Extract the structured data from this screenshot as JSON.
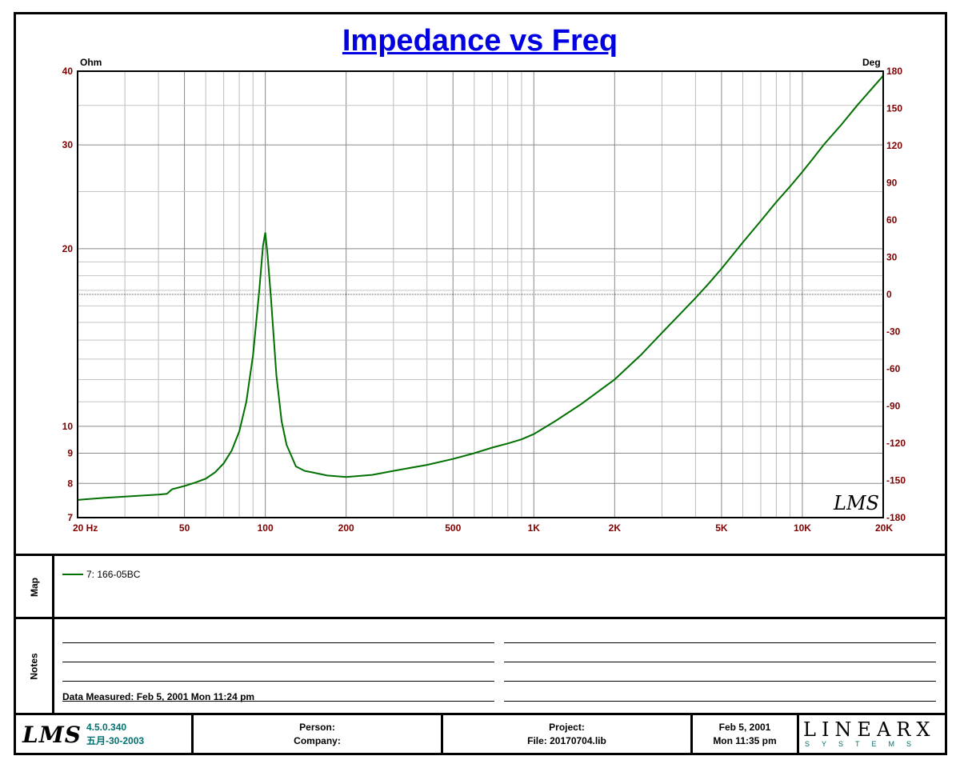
{
  "chart_data": {
    "type": "line",
    "title": "Impedance vs Freq",
    "y_left_unit": "Ohm",
    "y_right_unit": "Deg",
    "x_scale": "log",
    "y_left_scale": "log",
    "xlim": [
      20,
      20000
    ],
    "ylim_left": [
      7,
      40
    ],
    "ylim_right": [
      -180,
      180
    ],
    "x_ticks": [
      {
        "value": 20,
        "label": "20  Hz"
      },
      {
        "value": 50,
        "label": "50"
      },
      {
        "value": 100,
        "label": "100"
      },
      {
        "value": 200,
        "label": "200"
      },
      {
        "value": 500,
        "label": "500"
      },
      {
        "value": 1000,
        "label": "1K"
      },
      {
        "value": 2000,
        "label": "2K"
      },
      {
        "value": 5000,
        "label": "5K"
      },
      {
        "value": 10000,
        "label": "10K"
      },
      {
        "value": 20000,
        "label": "20K"
      }
    ],
    "y_left_ticks": [
      {
        "value": 40,
        "label": "40"
      },
      {
        "value": 30,
        "label": "30"
      },
      {
        "value": 20,
        "label": "20"
      },
      {
        "value": 10,
        "label": "10"
      },
      {
        "value": 9,
        "label": "9"
      },
      {
        "value": 8,
        "label": "8"
      },
      {
        "value": 7,
        "label": "7"
      }
    ],
    "y_right_ticks": [
      180,
      150,
      120,
      90,
      60,
      30,
      0,
      -30,
      -60,
      -90,
      -120,
      -150,
      -180
    ],
    "grid": true,
    "series": [
      {
        "name": "7: 166-05BC",
        "color": "#007000",
        "x": [
          20,
          25,
          30,
          35,
          40,
          43,
          45,
          50,
          55,
          60,
          65,
          70,
          75,
          80,
          85,
          90,
          95,
          98,
          100,
          102,
          105,
          110,
          115,
          120,
          130,
          140,
          150,
          170,
          200,
          250,
          300,
          400,
          500,
          600,
          700,
          800,
          900,
          1000,
          1200,
          1500,
          2000,
          2500,
          3000,
          4000,
          4500,
          5000,
          6000,
          7000,
          8000,
          9000,
          10000,
          11000,
          12000,
          14000,
          16000,
          18000,
          20000
        ],
        "y": [
          7.5,
          7.56,
          7.6,
          7.63,
          7.66,
          7.68,
          7.82,
          7.92,
          8.03,
          8.15,
          8.35,
          8.65,
          9.1,
          9.8,
          11.0,
          13.2,
          17.0,
          20.2,
          21.3,
          19.5,
          16.5,
          12.2,
          10.2,
          9.3,
          8.55,
          8.4,
          8.35,
          8.25,
          8.2,
          8.27,
          8.4,
          8.6,
          8.8,
          9.0,
          9.2,
          9.35,
          9.5,
          9.7,
          10.2,
          10.9,
          12.0,
          13.2,
          14.4,
          16.5,
          17.5,
          18.5,
          20.5,
          22.3,
          24.0,
          25.5,
          27.0,
          28.5,
          30.0,
          32.5,
          35.0,
          37.2,
          39.3
        ]
      }
    ]
  },
  "map": {
    "label": "Map",
    "legend": "7: 166-05BC",
    "legend_color": "#007000"
  },
  "notes": {
    "label": "Notes",
    "measured": "Data Measured: Feb  5, 2001  Mon 11:24 pm"
  },
  "footer": {
    "logo": "LMS",
    "version": "4.5.0.340",
    "build_date": "五月-30-2003",
    "person": "Person:",
    "company": "Company:",
    "project": "Project:",
    "file": "File: 20170704.lib",
    "date": "Feb  5, 2001",
    "time": "Mon 11:35 pm",
    "brand": "LINEARX",
    "brand_sub": "SYSTEMS"
  },
  "watermark": "LMS"
}
